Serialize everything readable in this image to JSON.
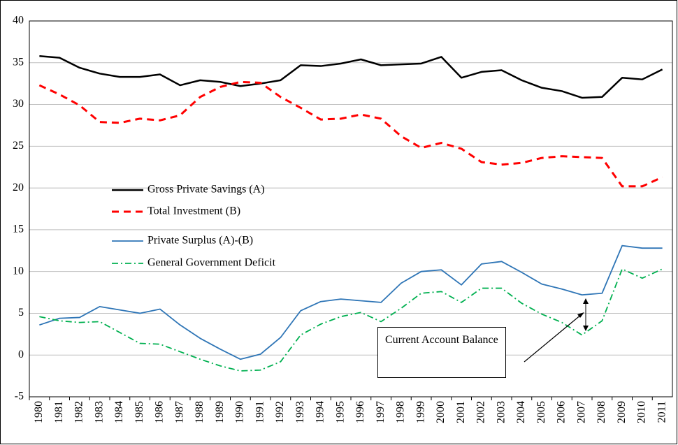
{
  "chart_data": {
    "type": "line",
    "categories": [
      "1980",
      "1981",
      "1982",
      "1983",
      "1984",
      "1985",
      "1986",
      "1987",
      "1988",
      "1989",
      "1990",
      "1991",
      "1992",
      "1993",
      "1994",
      "1995",
      "1996",
      "1997",
      "1998",
      "1999",
      "2000",
      "2001",
      "2002",
      "2003",
      "2004",
      "2005",
      "2006",
      "2007",
      "2008",
      "2009",
      "2010",
      "2011"
    ],
    "series": [
      {
        "name": "Gross Private Savings (A)",
        "color": "#000000",
        "dash": "solid",
        "width": 2.5,
        "values": [
          35.8,
          35.6,
          34.4,
          33.7,
          33.3,
          33.3,
          33.6,
          32.3,
          32.9,
          32.7,
          32.2,
          32.5,
          32.9,
          34.7,
          34.6,
          34.9,
          35.4,
          34.7,
          34.8,
          34.9,
          35.7,
          33.2,
          33.9,
          34.1,
          32.9,
          32.0,
          31.6,
          30.8,
          30.9,
          33.2,
          33.0,
          34.2
        ]
      },
      {
        "name": "Total Investment (B)",
        "color": "#ff0000",
        "dash": "dash",
        "width": 3,
        "values": [
          32.3,
          31.2,
          29.9,
          27.9,
          27.8,
          28.3,
          28.1,
          28.7,
          30.9,
          32.1,
          32.7,
          32.6,
          30.9,
          29.6,
          28.2,
          28.3,
          28.8,
          28.3,
          26.2,
          24.8,
          25.4,
          24.7,
          23.1,
          22.8,
          23.0,
          23.6,
          23.8,
          23.7,
          23.6,
          20.2,
          20.2,
          21.3
        ]
      },
      {
        "name": "Private Surplus (A)-(B)",
        "color": "#2e75b6",
        "dash": "solid",
        "width": 1.8,
        "values": [
          3.6,
          4.4,
          4.5,
          5.8,
          5.4,
          5.0,
          5.5,
          3.6,
          2.0,
          0.7,
          -0.5,
          0.1,
          2.1,
          5.3,
          6.4,
          6.7,
          6.5,
          6.3,
          8.6,
          10.0,
          10.2,
          8.4,
          10.9,
          11.2,
          9.9,
          8.5,
          7.9,
          7.2,
          7.4,
          13.1,
          12.8,
          12.8
        ]
      },
      {
        "name": "General Government Deficit",
        "color": "#00b050",
        "dash": "dashdot",
        "width": 1.8,
        "values": [
          4.6,
          4.1,
          3.9,
          4.0,
          2.7,
          1.4,
          1.3,
          0.4,
          -0.5,
          -1.3,
          -1.9,
          -1.8,
          -0.8,
          2.4,
          3.7,
          4.6,
          5.1,
          4.0,
          5.6,
          7.4,
          7.6,
          6.3,
          8.0,
          8.0,
          6.2,
          4.9,
          3.9,
          2.4,
          4.1,
          10.3,
          9.2,
          10.3
        ]
      }
    ],
    "annotation": "Current Account Balance",
    "ylim": [
      -5,
      40
    ],
    "yticks": [
      -5,
      0,
      5,
      10,
      15,
      20,
      25,
      30,
      35,
      40
    ],
    "grid": true
  }
}
